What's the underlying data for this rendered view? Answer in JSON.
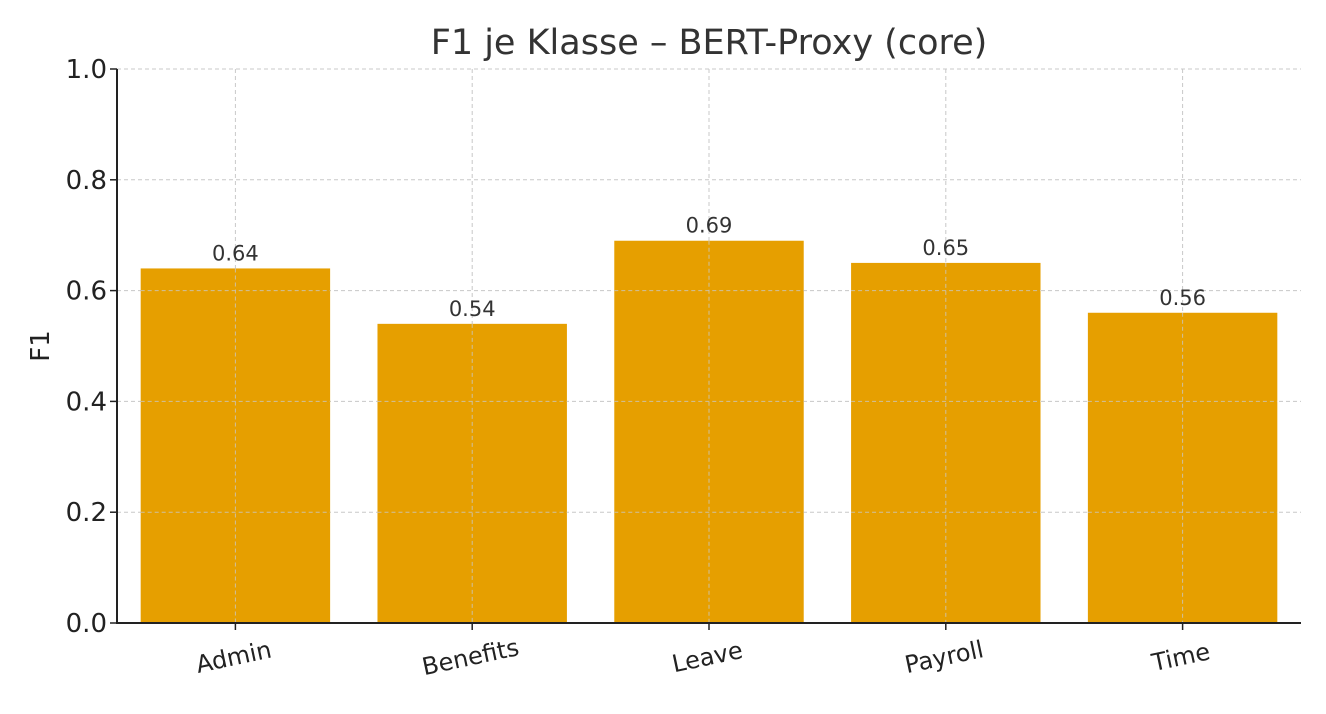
{
  "chart_data": {
    "type": "bar",
    "title": "F1 je Klasse – BERT-Proxy (core)",
    "xlabel": "",
    "ylabel": "F1",
    "categories": [
      "Admin",
      "Benefits",
      "Leave",
      "Payroll",
      "Time"
    ],
    "values": [
      0.64,
      0.54,
      0.69,
      0.65,
      0.56
    ],
    "value_labels": [
      "0.64",
      "0.54",
      "0.69",
      "0.65",
      "0.56"
    ],
    "ylim": [
      0,
      1.0
    ],
    "yticks": [
      0.0,
      0.2,
      0.4,
      0.6,
      0.8,
      1.0
    ],
    "ytick_labels": [
      "0.0",
      "0.2",
      "0.4",
      "0.6",
      "0.8",
      "1.0"
    ],
    "grid": true,
    "bar_color": "#E69F00",
    "grid_color": "#c8c8c8",
    "axis_color": "#222222"
  }
}
